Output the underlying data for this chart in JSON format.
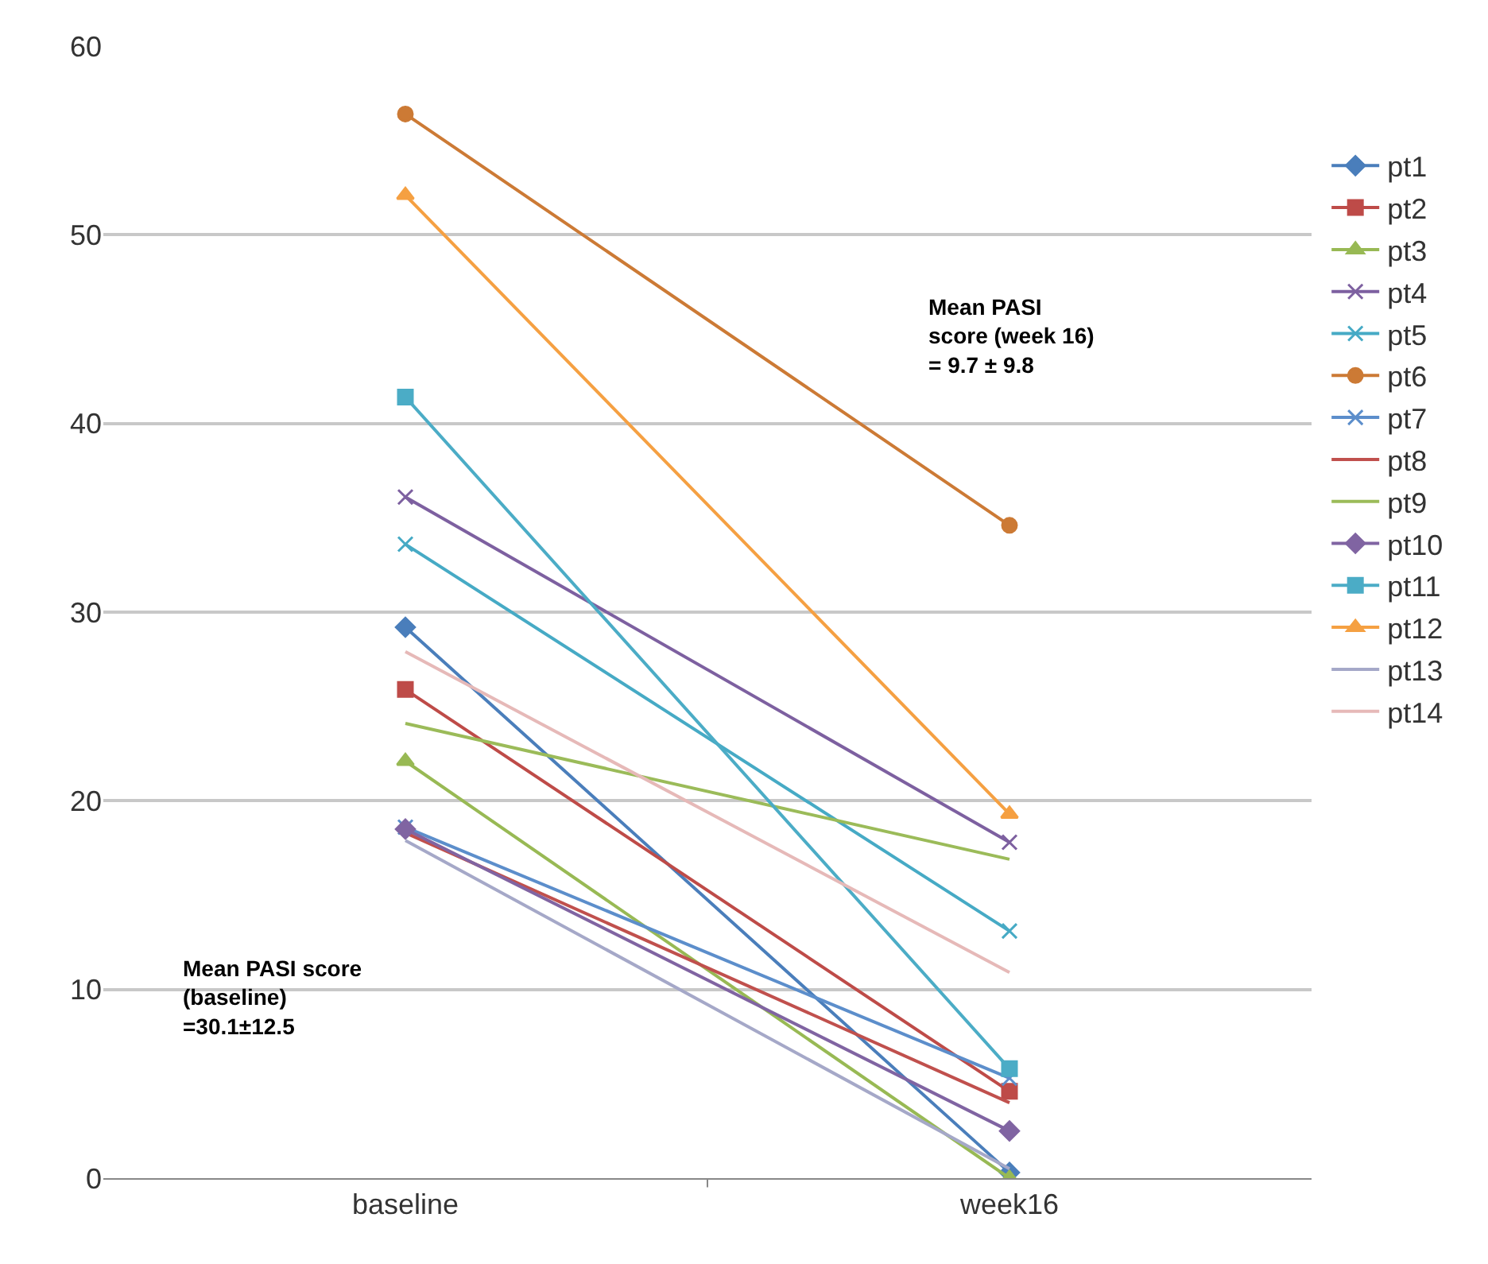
{
  "chart_data": {
    "type": "line",
    "categories": [
      "baseline",
      "week16"
    ],
    "series": [
      {
        "name": "pt1",
        "color": "#4a7ebb",
        "marker": "diamond",
        "values": [
          29.2,
          0.3
        ]
      },
      {
        "name": "pt2",
        "color": "#be4b48",
        "marker": "square",
        "values": [
          25.9,
          4.6
        ]
      },
      {
        "name": "pt3",
        "color": "#98b954",
        "marker": "triangle",
        "values": [
          22.1,
          0
        ]
      },
      {
        "name": "pt4",
        "color": "#7d60a0",
        "marker": "cross",
        "values": [
          36.1,
          17.8
        ]
      },
      {
        "name": "pt5",
        "color": "#46aac5",
        "marker": "cross",
        "values": [
          33.6,
          13.1
        ]
      },
      {
        "name": "pt6",
        "color": "#cc7a35",
        "marker": "circle",
        "values": [
          56.4,
          34.6
        ]
      },
      {
        "name": "pt7",
        "color": "#5c8ecb",
        "marker": "cross",
        "values": [
          18.6,
          5.3
        ]
      },
      {
        "name": "pt8",
        "color": "#c0504d",
        "marker": "none",
        "values": [
          18.3,
          4.0
        ]
      },
      {
        "name": "pt9",
        "color": "#9bbb59",
        "marker": "none",
        "values": [
          24.1,
          16.9
        ]
      },
      {
        "name": "pt10",
        "color": "#8064a2",
        "marker": "diamond",
        "values": [
          18.5,
          2.5
        ]
      },
      {
        "name": "pt11",
        "color": "#4bacc6",
        "marker": "square",
        "values": [
          41.4,
          5.8
        ]
      },
      {
        "name": "pt12",
        "color": "#f5a042",
        "marker": "triangle",
        "values": [
          52.1,
          19.3
        ]
      },
      {
        "name": "pt13",
        "color": "#a5a8c8",
        "marker": "none",
        "values": [
          17.9,
          0.5
        ]
      },
      {
        "name": "pt14",
        "color": "#e6b9b8",
        "marker": "none",
        "values": [
          27.9,
          10.9
        ]
      }
    ],
    "ylim": [
      0,
      60
    ],
    "yticks": [
      0,
      10,
      20,
      30,
      40,
      50,
      60
    ],
    "grid": "y",
    "legend": "right",
    "line_style": "solid",
    "annotations": [
      "Mean PASI score\n(baseline)\n=30.1±12.5",
      "Mean PASI\nscore (week 16)\n= 9.7 ± 9.8"
    ]
  }
}
